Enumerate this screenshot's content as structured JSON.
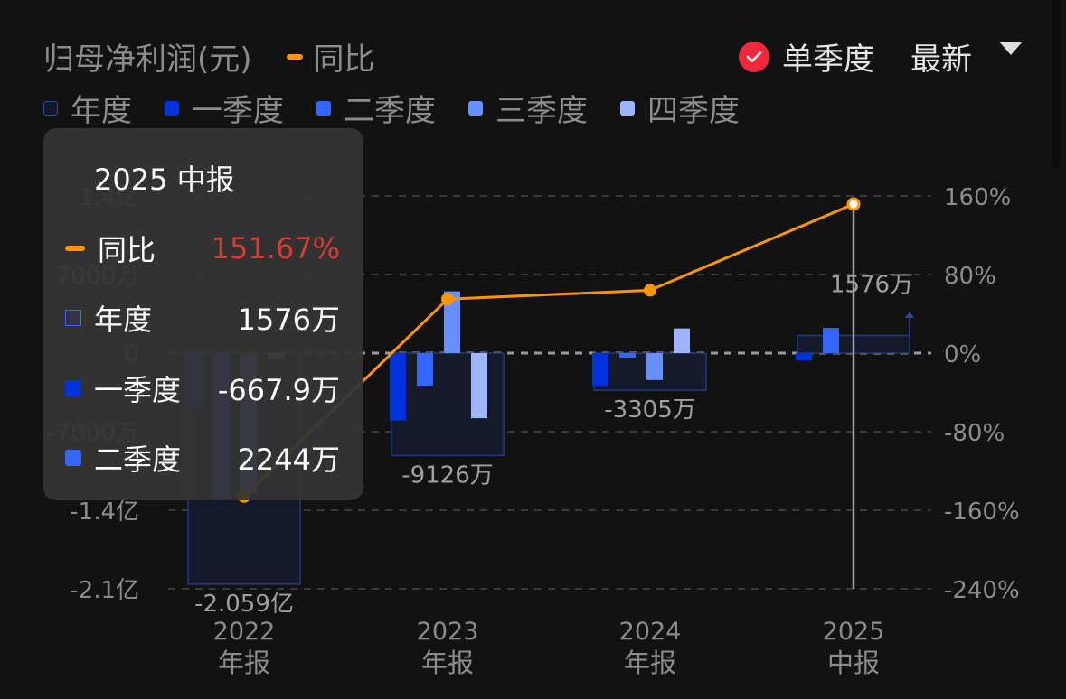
{
  "header": {
    "title": "归母净利润(元)",
    "yoy_legend": "同比",
    "single_quarter_label": "单季度",
    "single_quarter_checked": true,
    "sort_label": "最新"
  },
  "legend": [
    {
      "label": "年度",
      "color": "#14192a",
      "border": "#2a4aa0"
    },
    {
      "label": "一季度",
      "color": "#0033dd"
    },
    {
      "label": "二季度",
      "color": "#3366ff"
    },
    {
      "label": "三季度",
      "color": "#6690ff"
    },
    {
      "label": "四季度",
      "color": "#9fb4ff"
    }
  ],
  "tooltip": {
    "title": "2025 中报",
    "rows": [
      {
        "label": "同比",
        "value": "151.67%",
        "value_color": "#d93b34"
      },
      {
        "label": "年度",
        "value": "1576万"
      },
      {
        "label": "一季度",
        "value": "-667.9万"
      },
      {
        "label": "二季度",
        "value": "2244万"
      }
    ]
  },
  "bar_labels": [
    "-2.059亿",
    "-9126万",
    "-3305万",
    "1576万"
  ],
  "chart_data": {
    "type": "bar",
    "title": "归母净利润(元)",
    "categories": [
      "2022 年报",
      "2023 年报",
      "2024 年报",
      "2025 中报"
    ],
    "x_tick_years": [
      "2022",
      "2023",
      "2024",
      "2025"
    ],
    "x_tick_types": [
      "年报",
      "年报",
      "年报",
      "中报"
    ],
    "series": [
      {
        "name": "年度",
        "unit": "万元",
        "values": [
          -20590,
          -9126,
          -3305,
          1576
        ]
      },
      {
        "name": "一季度",
        "unit": "万元",
        "values": [
          -5000,
          -6000,
          -2900,
          -667.9
        ]
      },
      {
        "name": "二季度",
        "unit": "万元",
        "values": [
          -13000,
          -2900,
          -400,
          2244
        ]
      },
      {
        "name": "三季度",
        "unit": "万元",
        "values": [
          -12500,
          5500,
          -2400,
          null
        ]
      },
      {
        "name": "四季度",
        "unit": "万元",
        "values": [
          -500,
          -5800,
          2200,
          null
        ]
      },
      {
        "name": "同比",
        "type": "line",
        "axis": "right",
        "unit": "%",
        "values": [
          -146,
          55,
          64,
          151.67
        ]
      }
    ],
    "left_axis": {
      "ticks": [
        "1.4亿",
        "7000万",
        "0",
        "-7000万",
        "-1.4亿",
        "-2.1亿"
      ],
      "range": [
        -21000,
        14000
      ]
    },
    "right_axis": {
      "ticks": [
        "160%",
        "80%",
        "0%",
        "-80%",
        "-160%",
        "-240%"
      ],
      "range": [
        -240,
        160
      ]
    },
    "grid": "dashed horizontal",
    "legend_position": "top-left",
    "highlighted_category": "2025 中报"
  }
}
